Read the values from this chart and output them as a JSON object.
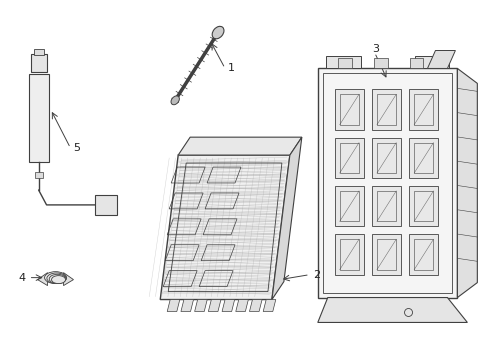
{
  "background_color": "#ffffff",
  "line_color": "#404040",
  "label_color": "#222222",
  "fig_width": 4.89,
  "fig_height": 3.6,
  "dpi": 100
}
